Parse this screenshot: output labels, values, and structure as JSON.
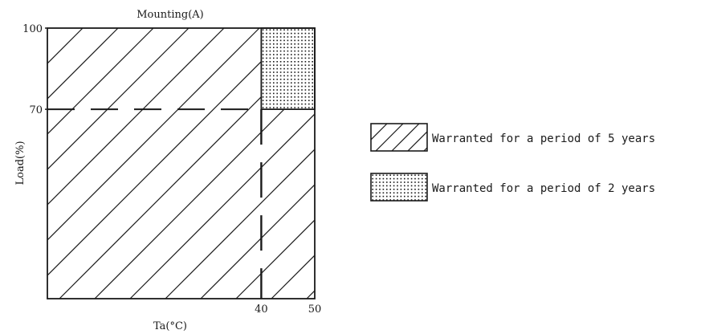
{
  "chart_data": {
    "type": "area",
    "title": "Mounting(A)",
    "xlabel": "Ta(°C)",
    "ylabel": "Load(%)",
    "x_ticks": [
      "40",
      "50"
    ],
    "y_ticks": [
      "100",
      "70"
    ],
    "xlim": [
      0,
      50
    ],
    "ylim": [
      0,
      100
    ],
    "regions": [
      {
        "label": "Warranted for a period of 5 years",
        "pattern": "diagonal-hatch",
        "polygon": [
          [
            0,
            0
          ],
          [
            50,
            0
          ],
          [
            50,
            70
          ],
          [
            40,
            70
          ],
          [
            40,
            100
          ],
          [
            0,
            100
          ]
        ]
      },
      {
        "label": "Warranted for a period of 2 years",
        "pattern": "dotted",
        "polygon": [
          [
            40,
            70
          ],
          [
            50,
            70
          ],
          [
            50,
            100
          ],
          [
            40,
            100
          ]
        ]
      }
    ],
    "reference_lines": [
      {
        "axis": "y",
        "value": 70,
        "style": "dashed"
      },
      {
        "axis": "x",
        "value": 40,
        "style": "dashed"
      }
    ],
    "grid": false,
    "legend": "right"
  }
}
